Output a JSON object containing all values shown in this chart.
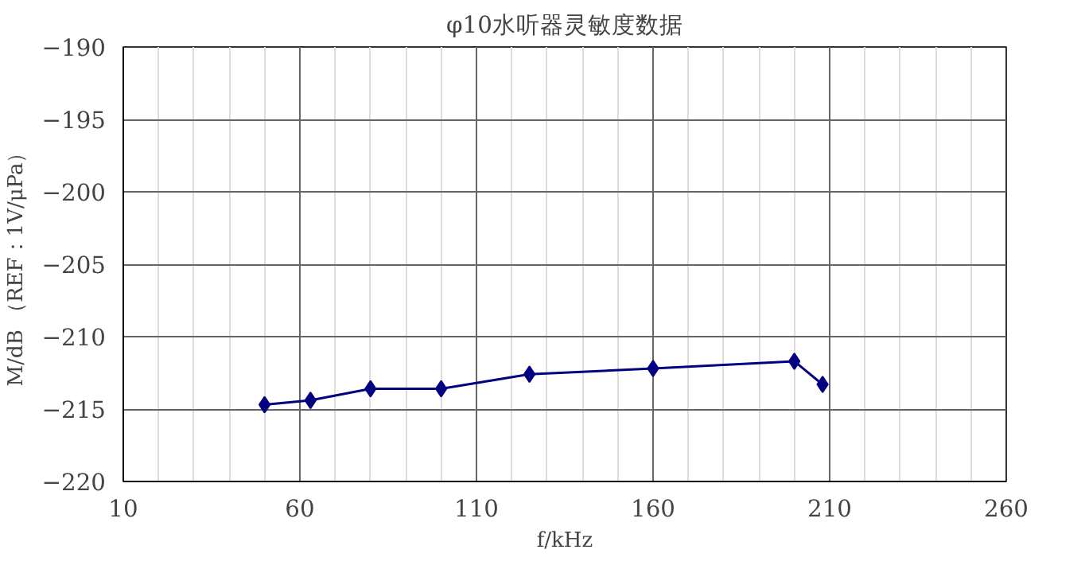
{
  "chart_data": {
    "type": "line",
    "title": "φ10水听器灵敏度数据",
    "xlabel": "f/kHz",
    "ylabel": "M/dB （REF：1V/μPa）",
    "x": [
      50,
      63,
      80,
      100,
      125,
      160,
      200,
      208
    ],
    "series": [
      {
        "color": "#000080",
        "values": [
          -214.7,
          -214.4,
          -213.6,
          -213.6,
          -212.6,
          -212.2,
          -211.7,
          -213.3
        ]
      }
    ],
    "xlim": [
      10,
      260
    ],
    "xticks": [
      10,
      60,
      110,
      160,
      210,
      260
    ],
    "ylim": [
      -220,
      -190
    ],
    "yticks": [
      -220,
      -215,
      -210,
      -205,
      -200,
      -195,
      -190
    ],
    "grid": true,
    "marker": "diamond",
    "line_style": "solid"
  }
}
